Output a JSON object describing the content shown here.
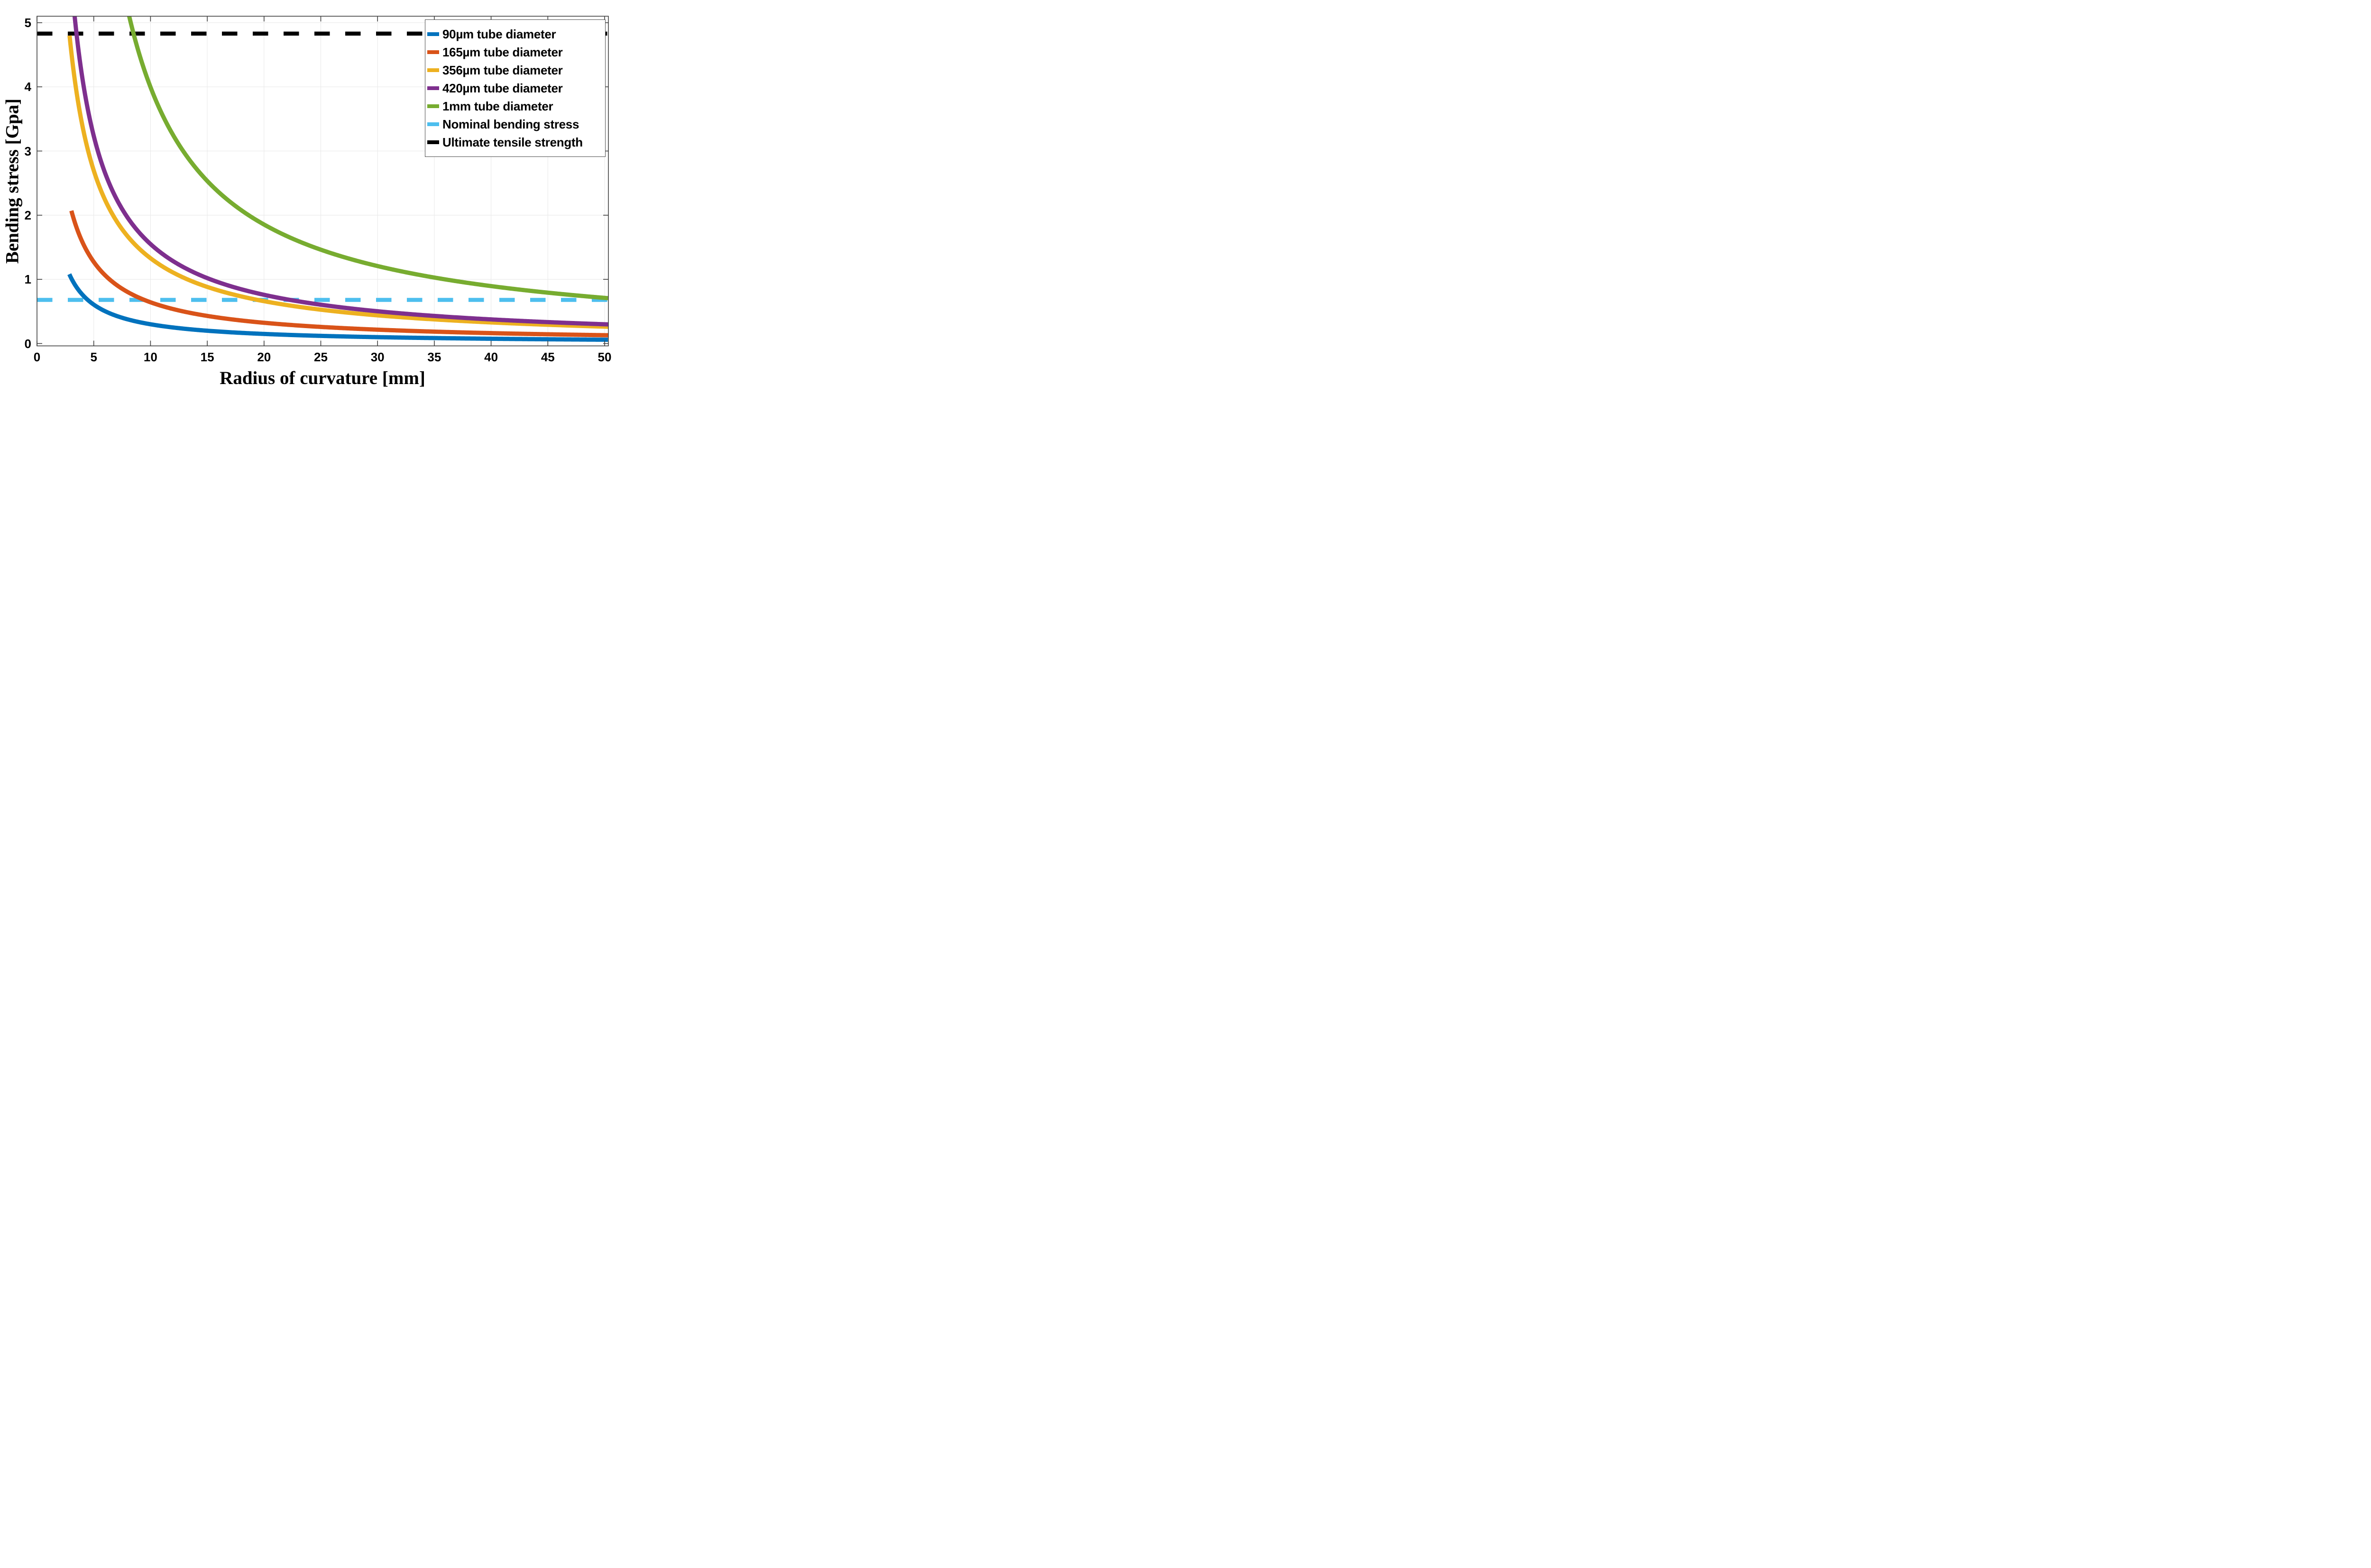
{
  "figure": {
    "background": "#ffffff",
    "axis_color": "#404040",
    "grid_color": "#e8e8e8"
  },
  "legend": {
    "items": [
      {
        "label": "90µm tube diameter",
        "color": "#0072BD",
        "style": "solid"
      },
      {
        "label": "165µm tube diameter",
        "color": "#D95319",
        "style": "solid"
      },
      {
        "label": "356µm tube diameter",
        "color": "#EDB120",
        "style": "solid"
      },
      {
        "label": "420µm tube diameter",
        "color": "#7E2F8E",
        "style": "solid"
      },
      {
        "label": "1mm tube diameter",
        "color": "#77AC30",
        "style": "solid"
      },
      {
        "label": "Nominal bending stress",
        "color": "#4DBEEE",
        "style": "dashed"
      },
      {
        "label": "Ultimate tensile strength",
        "color": "#000000",
        "style": "dashed"
      }
    ]
  },
  "chart_data": {
    "type": "line",
    "title": "",
    "xlabel": "Radius of curvature [mm]",
    "ylabel": "Bending stress [Gpa]",
    "xlim": [
      0,
      50.33
    ],
    "ylim": [
      -0.04,
      5.11
    ],
    "x_ticks": [
      0,
      5,
      10,
      15,
      20,
      25,
      30,
      35,
      40,
      45,
      50
    ],
    "y_ticks": [
      0,
      1,
      2,
      3,
      4,
      5
    ],
    "grid": true,
    "legend_position": "northeast",
    "series": [
      {
        "name": "90µm tube diameter",
        "color": "#0072BD",
        "style": "solid",
        "model": {
          "k": 2.97,
          "c": 0.101,
          "r_start": 2.85,
          "r_end": 50.33
        },
        "points": [
          [
            3,
            1.02
          ],
          [
            4,
            0.76
          ],
          [
            5,
            0.61
          ],
          [
            7.5,
            0.4
          ],
          [
            10,
            0.3
          ],
          [
            15,
            0.2
          ],
          [
            20,
            0.15
          ],
          [
            25,
            0.12
          ],
          [
            30,
            0.1
          ],
          [
            35,
            0.09
          ],
          [
            40,
            0.07
          ],
          [
            45,
            0.07
          ],
          [
            50,
            0.06
          ]
        ]
      },
      {
        "name": "165µm tube diameter",
        "color": "#D95319",
        "style": "solid",
        "model": {
          "k": 6.5,
          "c": -0.111,
          "r_start": 3.03,
          "r_end": 50.33
        },
        "points": [
          [
            3.03,
            2.07
          ],
          [
            4,
            1.58
          ],
          [
            5,
            1.27
          ],
          [
            7.5,
            0.85
          ],
          [
            10,
            0.64
          ],
          [
            15,
            0.43
          ],
          [
            20,
            0.32
          ],
          [
            25,
            0.26
          ],
          [
            30,
            0.22
          ],
          [
            35,
            0.19
          ],
          [
            40,
            0.16
          ],
          [
            45,
            0.14
          ],
          [
            50,
            0.13
          ]
        ]
      },
      {
        "name": "356µm tube diameter",
        "color": "#EDB120",
        "style": "solid",
        "model": {
          "k": 13.11,
          "c": 0.138,
          "r_start": 2.87,
          "r_end": 50.33
        },
        "points": [
          [
            2.87,
            4.8
          ],
          [
            4,
            3.39
          ],
          [
            5,
            2.7
          ],
          [
            7.5,
            1.78
          ],
          [
            10,
            1.33
          ],
          [
            15,
            0.88
          ],
          [
            20,
            0.66
          ],
          [
            25,
            0.53
          ],
          [
            30,
            0.44
          ],
          [
            35,
            0.38
          ],
          [
            40,
            0.33
          ],
          [
            45,
            0.29
          ],
          [
            50,
            0.26
          ]
        ]
      },
      {
        "name": "420µm tube diameter",
        "color": "#7E2F8E",
        "style": "solid",
        "model": {
          "k": 14.88,
          "c": 0.4,
          "r_start": 3.2,
          "r_end": 50.33
        },
        "points": [
          [
            3.31,
            5.11
          ],
          [
            4,
            4.13
          ],
          [
            5,
            3.23
          ],
          [
            7.5,
            2.1
          ],
          [
            10,
            1.55
          ],
          [
            15,
            1.02
          ],
          [
            20,
            0.76
          ],
          [
            25,
            0.6
          ],
          [
            30,
            0.5
          ],
          [
            35,
            0.43
          ],
          [
            40,
            0.38
          ],
          [
            45,
            0.33
          ],
          [
            50,
            0.3
          ]
        ]
      },
      {
        "name": "1mm tube diameter",
        "color": "#77AC30",
        "style": "solid",
        "model": {
          "k": 34.6,
          "c": 1.34,
          "r_start": 7.9,
          "r_end": 50.33
        },
        "points": [
          [
            8.12,
            5.11
          ],
          [
            10,
            4.0
          ],
          [
            15,
            2.53
          ],
          [
            20,
            1.85
          ],
          [
            25,
            1.46
          ],
          [
            30,
            1.21
          ],
          [
            35,
            1.03
          ],
          [
            40,
            0.9
          ],
          [
            45,
            0.79
          ],
          [
            50,
            0.71
          ]
        ]
      }
    ],
    "reference_lines": [
      {
        "name": "Nominal bending stress",
        "value": 0.68,
        "color": "#4DBEEE",
        "style": "dashed"
      },
      {
        "name": "Ultimate tensile strength",
        "value": 4.83,
        "color": "#000000",
        "style": "dashed"
      }
    ]
  }
}
